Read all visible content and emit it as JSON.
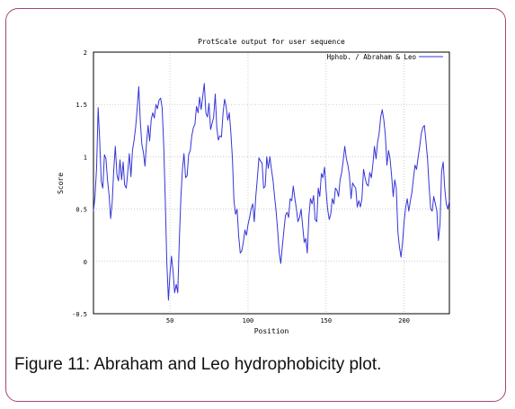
{
  "caption": "Figure 11: Abraham and Leo hydrophobicity plot.",
  "chart_data": {
    "type": "line",
    "title": "ProtScale output for user sequence",
    "xlabel": "Position",
    "ylabel": "Score",
    "xlim": [
      1,
      229
    ],
    "ylim": [
      -0.5,
      2
    ],
    "xticks": [
      50,
      100,
      150,
      200
    ],
    "xtick_labels": [
      "50",
      "100",
      "150",
      "200"
    ],
    "yticks": [
      -0.5,
      0,
      0.5,
      1,
      1.5,
      2
    ],
    "ytick_labels": [
      "-0.5",
      "0",
      "0.5",
      "1",
      "1.5",
      "2"
    ],
    "grid": true,
    "legend_position": "top-right",
    "series": [
      {
        "name": "Hphob. / Abraham & Leo",
        "color": "#3535d8",
        "x_start": 1,
        "values": [
          0.48,
          0.62,
          0.9,
          1.47,
          1.16,
          0.76,
          0.7,
          1.02,
          0.98,
          0.78,
          0.63,
          0.41,
          0.56,
          0.88,
          1.1,
          0.83,
          0.77,
          0.97,
          0.78,
          0.95,
          0.73,
          0.7,
          0.86,
          1.03,
          0.81,
          1.06,
          1.16,
          1.28,
          1.46,
          1.67,
          1.34,
          1.12,
          1.04,
          0.91,
          1.14,
          1.3,
          1.15,
          1.36,
          1.42,
          1.37,
          1.5,
          1.46,
          1.54,
          1.56,
          1.47,
          1.1,
          0.58,
          -0.01,
          -0.37,
          -0.12,
          0.05,
          -0.1,
          -0.3,
          -0.22,
          -0.3,
          0.2,
          0.62,
          0.88,
          1.03,
          0.8,
          0.82,
          1.02,
          1.06,
          1.2,
          1.28,
          1.31,
          1.48,
          1.42,
          1.57,
          1.45,
          1.58,
          1.7,
          1.42,
          1.38,
          1.51,
          1.26,
          1.32,
          1.38,
          1.6,
          1.28,
          1.16,
          1.2,
          1.19,
          1.42,
          1.55,
          1.48,
          1.35,
          1.42,
          1.24,
          0.98,
          0.58,
          0.45,
          0.5,
          0.25,
          0.08,
          0.1,
          0.18,
          0.3,
          0.25,
          0.35,
          0.42,
          0.5,
          0.55,
          0.38,
          0.62,
          0.8,
          0.99,
          0.96,
          0.94,
          0.7,
          0.72,
          1.0,
          0.89,
          1.0,
          0.88,
          0.78,
          0.62,
          0.48,
          0.3,
          0.08,
          -0.02,
          0.15,
          0.3,
          0.44,
          0.47,
          0.42,
          0.6,
          0.58,
          0.72,
          0.6,
          0.5,
          0.38,
          0.42,
          0.5,
          0.34,
          0.18,
          0.22,
          0.08,
          0.43,
          0.6,
          0.55,
          0.63,
          0.4,
          0.38,
          0.7,
          0.62,
          0.84,
          0.8,
          0.9,
          0.68,
          0.5,
          0.4,
          0.45,
          0.6,
          0.55,
          0.7,
          0.68,
          0.62,
          0.78,
          0.85,
          0.97,
          1.1,
          0.98,
          0.92,
          0.82,
          0.6,
          0.75,
          0.72,
          0.7,
          0.52,
          0.58,
          0.52,
          0.6,
          0.88,
          0.8,
          0.74,
          0.72,
          0.85,
          0.8,
          0.93,
          1.1,
          0.98,
          1.14,
          1.22,
          1.38,
          1.45,
          1.35,
          1.2,
          0.92,
          1.06,
          0.98,
          0.82,
          0.62,
          0.78,
          0.7,
          0.28,
          0.14,
          0.04,
          0.18,
          0.38,
          0.52,
          0.6,
          0.48,
          0.58,
          0.66,
          0.8,
          0.92,
          0.88,
          1.0,
          1.1,
          1.22,
          1.28,
          1.3,
          1.15,
          0.98,
          0.72,
          0.5,
          0.48,
          0.62,
          0.55,
          0.48,
          0.2,
          0.36,
          0.86,
          0.95,
          0.7,
          0.55,
          0.5,
          0.58
        ]
      }
    ]
  }
}
